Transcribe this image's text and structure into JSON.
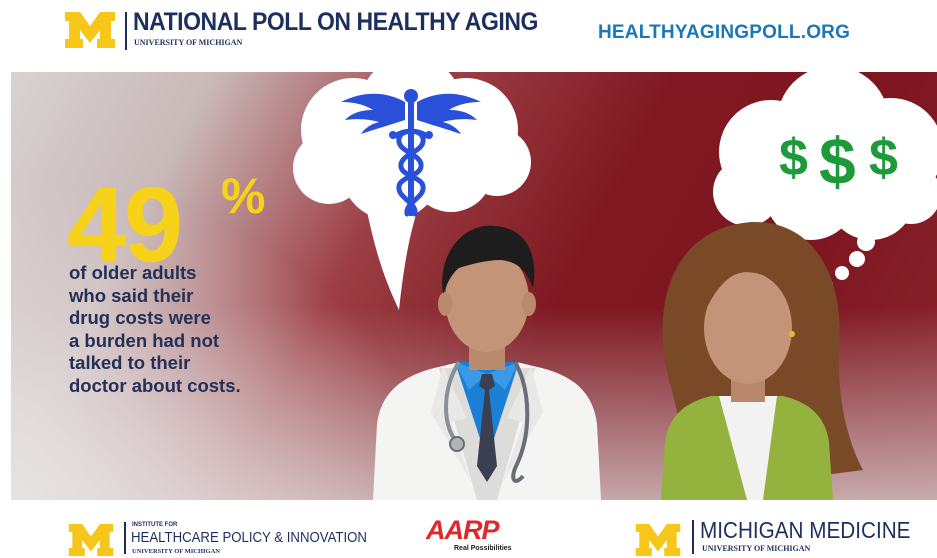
{
  "header": {
    "poll_title": "NATIONAL POLL ON HEALTHY AGING",
    "poll_subtitle": "UNIVERSITY OF MICHIGAN",
    "website": "HEALTHYAGINGPOLL.ORG"
  },
  "hero": {
    "stat_value": "49",
    "stat_unit": "%",
    "caption_lines": [
      "of older adults",
      "who said their",
      "drug costs were",
      "a burden had not",
      "talked to their",
      "doctor about costs."
    ],
    "money_symbols": "$$$",
    "icons": {
      "doctor_thought": "caduceus-icon",
      "patient_thought": "dollar-signs-icon"
    }
  },
  "footer": {
    "ihpi_prefix": "INSTITUTE FOR",
    "ihpi_title": "HEALTHCARE POLICY & INNOVATION",
    "ihpi_sub": "UNIVERSITY OF MICHIGAN",
    "aarp_name": "AARP",
    "aarp_tagline": "Real Possibilities",
    "mm_title": "MICHIGAN MEDICINE",
    "mm_sub": "UNIVERSITY OF MICHIGAN"
  },
  "colors": {
    "navy": "#1d2f5e",
    "link_blue": "#1b78b7",
    "maize": "#f7d21a",
    "maroon": "#7e1620",
    "caduceus_blue": "#2a4fd8",
    "money_green": "#1f9a3a",
    "aarp_red": "#e0282b"
  }
}
